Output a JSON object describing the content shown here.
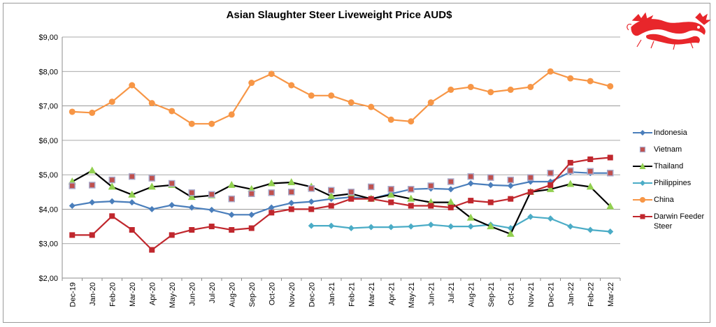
{
  "chart_data": {
    "type": "line",
    "title": "Asian Slaughter Steer Liveweight Price AUD$",
    "xlabel": "",
    "ylabel": "",
    "ylim": [
      2,
      9
    ],
    "y_ticks": [
      "$2,00",
      "$3,00",
      "$4,00",
      "$5,00",
      "$6,00",
      "$7,00",
      "$8,00",
      "$9,00"
    ],
    "grid": true,
    "legend_position": "right",
    "categories": [
      "Dec-19",
      "Jan-20",
      "Feb-20",
      "Mar-20",
      "Apr-20",
      "May-20",
      "Jun-20",
      "Jul-20",
      "Aug-20",
      "Sep-20",
      "Oct-20",
      "Nov-20",
      "Dec-20",
      "Jan-21",
      "Feb-21",
      "Mar-21",
      "Apr-21",
      "May-21",
      "Jun-21",
      "Jul-21",
      "Aug-21",
      "Sep-21",
      "Oct-21",
      "Nov-21",
      "Dec-21",
      "Jan-22",
      "Feb-22",
      "Mar-22"
    ],
    "series": [
      {
        "name": "Indonesia",
        "color": "#4a7ebb",
        "line": true,
        "marker": "diamond",
        "values": [
          4.1,
          4.2,
          4.23,
          4.2,
          4.0,
          4.12,
          4.05,
          3.98,
          3.84,
          3.84,
          4.05,
          4.18,
          4.22,
          4.3,
          4.35,
          4.3,
          4.45,
          4.58,
          4.6,
          4.58,
          4.75,
          4.7,
          4.68,
          4.8,
          4.8,
          5.08,
          5.05,
          5.05
        ]
      },
      {
        "name": "Vietnam",
        "color": "#c0504d",
        "line": false,
        "marker": "square",
        "values": [
          4.68,
          4.7,
          4.85,
          4.95,
          4.9,
          4.75,
          4.48,
          4.43,
          4.3,
          4.45,
          4.48,
          4.5,
          4.6,
          4.55,
          4.5,
          4.65,
          4.58,
          4.58,
          4.68,
          4.8,
          4.95,
          4.92,
          4.85,
          4.92,
          5.05,
          5.12,
          5.1,
          5.05
        ]
      },
      {
        "name": "Thailand",
        "color": "#000000",
        "line": true,
        "marker": "triangle",
        "marker_color": "#92d050",
        "values": [
          4.8,
          5.12,
          4.65,
          4.42,
          4.65,
          4.7,
          4.35,
          4.4,
          4.7,
          4.58,
          4.75,
          4.78,
          4.65,
          4.38,
          4.45,
          4.3,
          4.42,
          4.3,
          4.2,
          4.2,
          3.75,
          3.5,
          3.28,
          4.5,
          4.58,
          4.73,
          4.65,
          4.08
        ]
      },
      {
        "name": "Philippines",
        "color": "#4bacc6",
        "line": true,
        "marker": "diamond",
        "values": [
          null,
          null,
          null,
          null,
          null,
          null,
          null,
          null,
          null,
          null,
          null,
          null,
          3.52,
          3.52,
          3.45,
          3.48,
          3.48,
          3.5,
          3.55,
          3.5,
          3.5,
          3.55,
          3.45,
          3.78,
          3.73,
          3.5,
          3.4,
          3.35
        ]
      },
      {
        "name": "China",
        "color": "#f79646",
        "line": true,
        "marker": "circle",
        "values": [
          6.83,
          6.8,
          7.12,
          7.6,
          7.08,
          6.85,
          6.48,
          6.48,
          6.75,
          7.67,
          7.93,
          7.6,
          7.3,
          7.3,
          7.1,
          6.97,
          6.6,
          6.55,
          7.1,
          7.47,
          7.55,
          7.4,
          7.47,
          7.55,
          8.0,
          7.8,
          7.72,
          7.57
        ]
      },
      {
        "name": "Darwin Feeder Steer",
        "color": "#c0272d",
        "line": true,
        "marker": "square",
        "values": [
          3.25,
          3.25,
          3.8,
          3.4,
          2.82,
          3.25,
          3.4,
          3.5,
          3.4,
          3.45,
          3.9,
          4.0,
          4.0,
          4.1,
          4.3,
          4.3,
          4.2,
          4.1,
          4.1,
          4.05,
          4.25,
          4.2,
          4.3,
          4.5,
          4.7,
          5.35,
          5.45,
          5.5
        ]
      }
    ]
  }
}
